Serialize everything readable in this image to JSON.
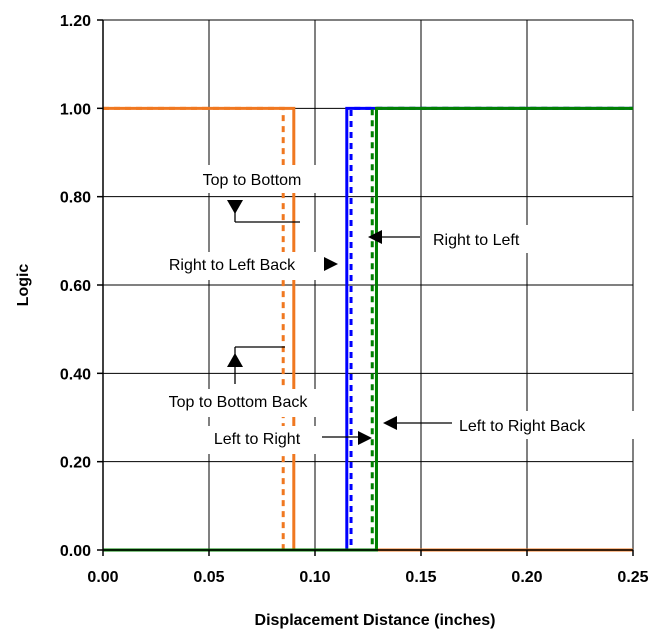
{
  "chart_data": {
    "type": "line",
    "title": "",
    "xlabel": "Displacement Distance (inches)",
    "ylabel": "Logic",
    "xlim": [
      0,
      0.25
    ],
    "ylim": [
      0,
      1.2
    ],
    "xticks": [
      "0.00",
      "0.05",
      "0.10",
      "0.15",
      "0.20",
      "0.25"
    ],
    "yticks": [
      "0.00",
      "0.20",
      "0.40",
      "0.60",
      "0.80",
      "1.00",
      "1.20"
    ],
    "grid": true,
    "legend": "none",
    "series": [
      {
        "color": "#f07820",
        "dash": false,
        "points": [
          [
            0,
            1
          ],
          [
            0.09,
            1
          ],
          [
            0.09,
            0
          ],
          [
            0.25,
            0
          ]
        ]
      },
      {
        "color": "#f07820",
        "dash": true,
        "points": [
          [
            0,
            1
          ],
          [
            0.085,
            1
          ],
          [
            0.085,
            0
          ],
          [
            0.25,
            0
          ]
        ]
      },
      {
        "color": "#0000ff",
        "dash": false,
        "points": [
          [
            0,
            0
          ],
          [
            0.115,
            0
          ],
          [
            0.115,
            1
          ],
          [
            0.25,
            1
          ]
        ]
      },
      {
        "color": "#0000ff",
        "dash": true,
        "points": [
          [
            0,
            0
          ],
          [
            0.117,
            0
          ],
          [
            0.117,
            1
          ],
          [
            0.25,
            1
          ]
        ]
      },
      {
        "color": "#008000",
        "dash": false,
        "points": [
          [
            0,
            0
          ],
          [
            0.129,
            0
          ],
          [
            0.129,
            1
          ],
          [
            0.25,
            1
          ]
        ]
      },
      {
        "color": "#008000",
        "dash": true,
        "points": [
          [
            0,
            0
          ],
          [
            0.127,
            0
          ],
          [
            0.127,
            1
          ],
          [
            0.25,
            1
          ]
        ]
      }
    ],
    "annotations": [
      {
        "text": "Top to Bottom",
        "target": [
          0.09,
          0.745
        ]
      },
      {
        "text": "Right to Left Back",
        "target": [
          0.115,
          0.655
        ]
      },
      {
        "text": "Right to Left",
        "target": [
          0.117,
          0.715
        ]
      },
      {
        "text": "Top to Bottom Back",
        "target": [
          0.085,
          0.455
        ]
      },
      {
        "text": "Left to Right",
        "target": [
          0.127,
          0.255
        ]
      },
      {
        "text": "Left to Right Back",
        "target": [
          0.129,
          0.3
        ]
      }
    ]
  }
}
